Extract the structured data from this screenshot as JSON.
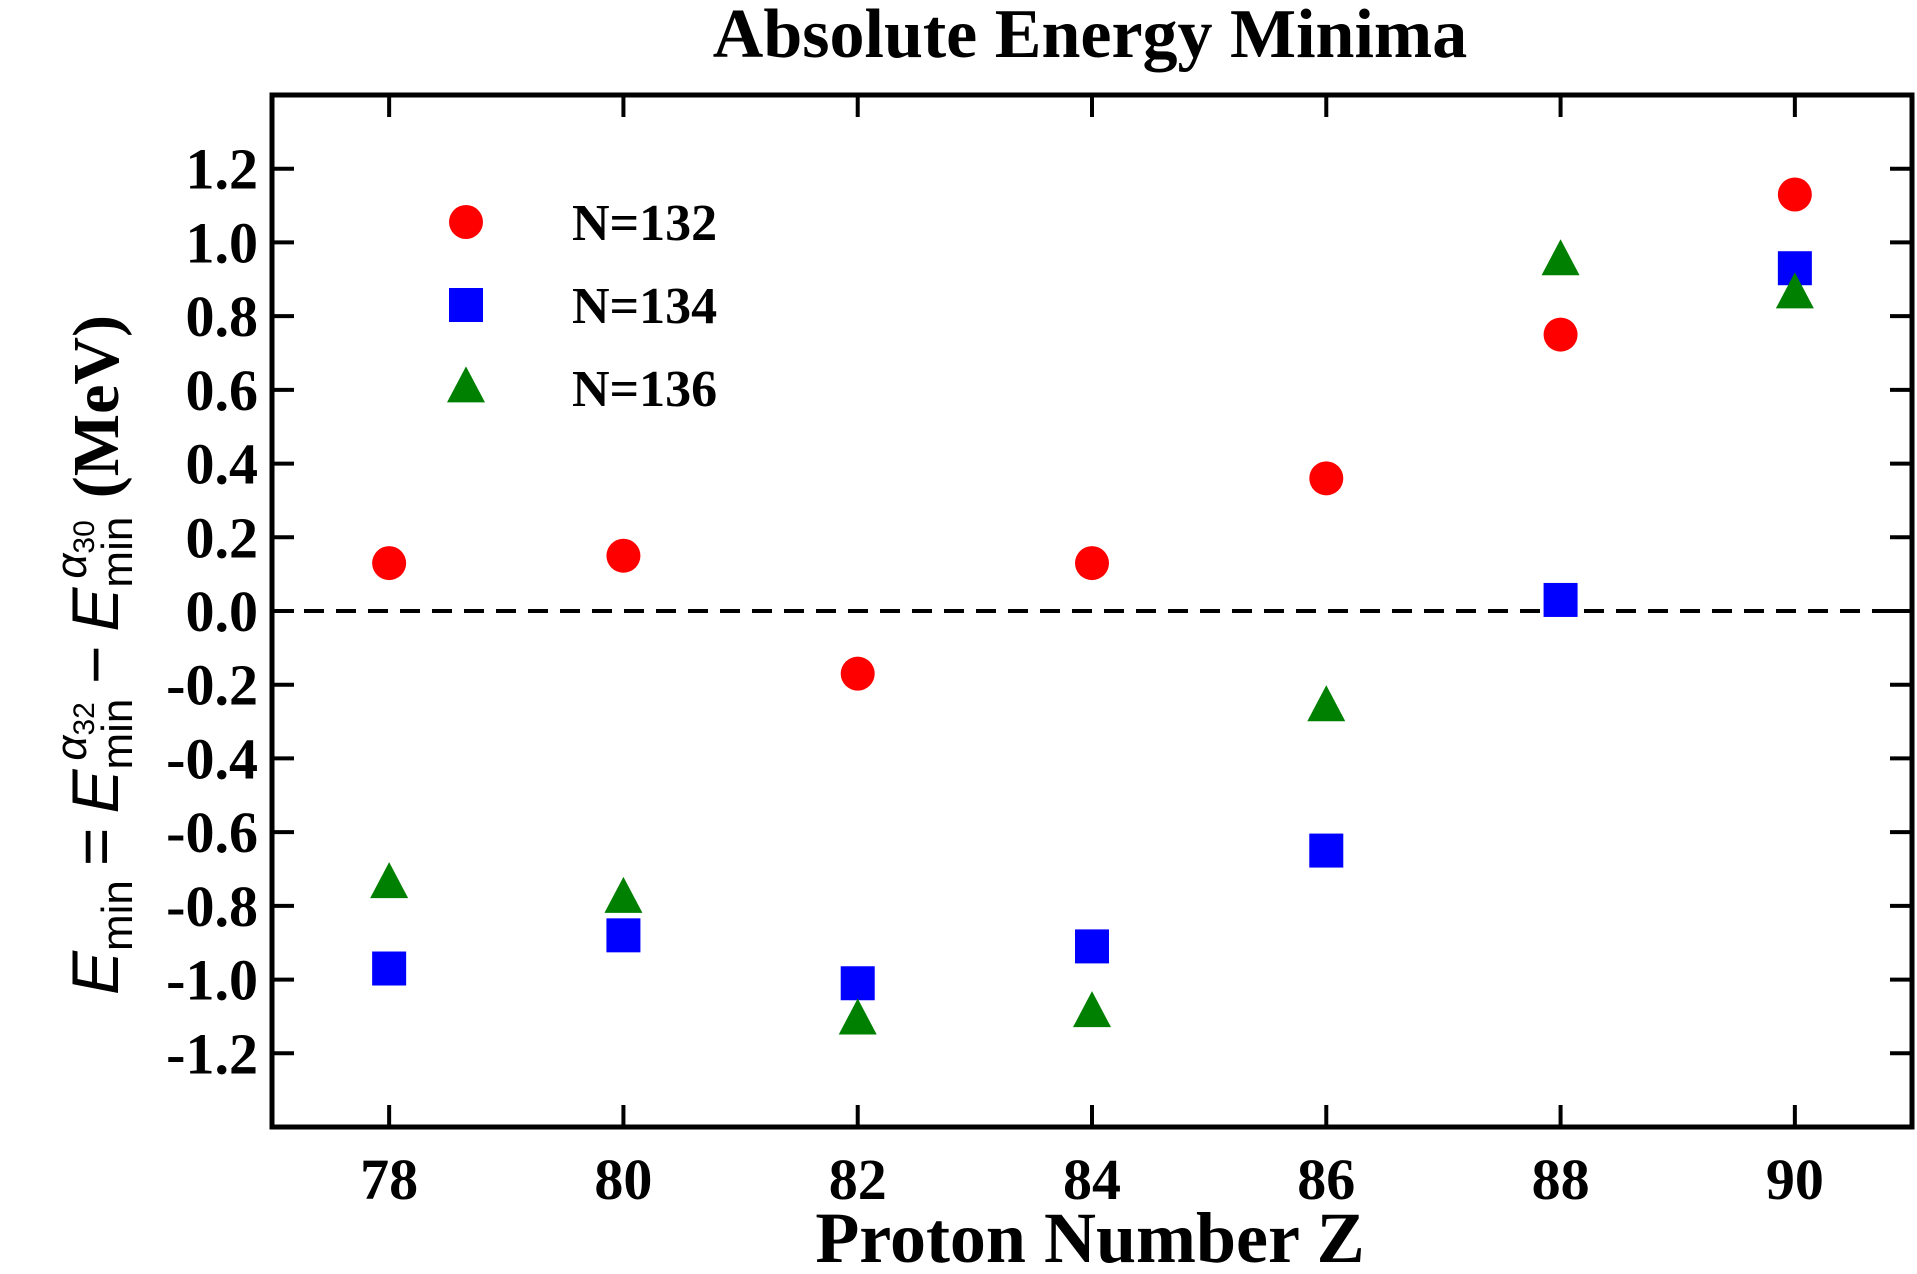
{
  "chart_data": {
    "type": "scatter",
    "title": "Absolute Energy Minima",
    "xlabel": "Proton Number Z",
    "ylabel": {
      "E1": "E",
      "sub1": "min",
      "eq": "=",
      "E2": "E",
      "sub2": "min",
      "sup2": "α",
      "sup2sub": "32",
      "minus": "−",
      "E3": "E",
      "sub3": "min",
      "sup3": "α",
      "sup3sub": "30",
      "unit": "(MeV)"
    },
    "xlim": [
      77,
      91
    ],
    "ylim": [
      -1.4,
      1.4
    ],
    "xticks": [
      78,
      80,
      82,
      84,
      86,
      88,
      90
    ],
    "xtick_labels": [
      "78",
      "80",
      "82",
      "84",
      "86",
      "88",
      "90"
    ],
    "yticks": [
      -1.2,
      -1.0,
      -0.8,
      -0.6,
      -0.4,
      -0.2,
      0.0,
      0.2,
      0.4,
      0.6,
      0.8,
      1.0,
      1.2
    ],
    "ytick_labels": [
      "-1.2",
      "-1.0",
      "-0.8",
      "-0.6",
      "-0.4",
      "-0.2",
      "0.0",
      "0.2",
      "0.4",
      "0.6",
      "0.8",
      "1.0",
      "1.2"
    ],
    "reference_line": {
      "y": 0.0,
      "style": "dashed"
    },
    "legend": {
      "placement": "top-left"
    },
    "series": [
      {
        "name": "N=132",
        "marker": "circle",
        "color": "#ff0000",
        "x": [
          78,
          80,
          82,
          84,
          86,
          88,
          90
        ],
        "y": [
          0.13,
          0.15,
          -0.17,
          0.13,
          0.36,
          0.75,
          1.13
        ]
      },
      {
        "name": "N=134",
        "marker": "square",
        "color": "#0000ff",
        "x": [
          78,
          80,
          82,
          84,
          86,
          88,
          90
        ],
        "y": [
          -0.97,
          -0.88,
          -1.01,
          -0.91,
          -0.65,
          0.03,
          0.93
        ]
      },
      {
        "name": "N=136",
        "marker": "triangle",
        "color": "#008000",
        "x": [
          78,
          80,
          82,
          84,
          86,
          88,
          90
        ],
        "y": [
          -0.74,
          -0.78,
          -1.11,
          -1.09,
          -0.26,
          0.95,
          0.86
        ]
      }
    ]
  }
}
